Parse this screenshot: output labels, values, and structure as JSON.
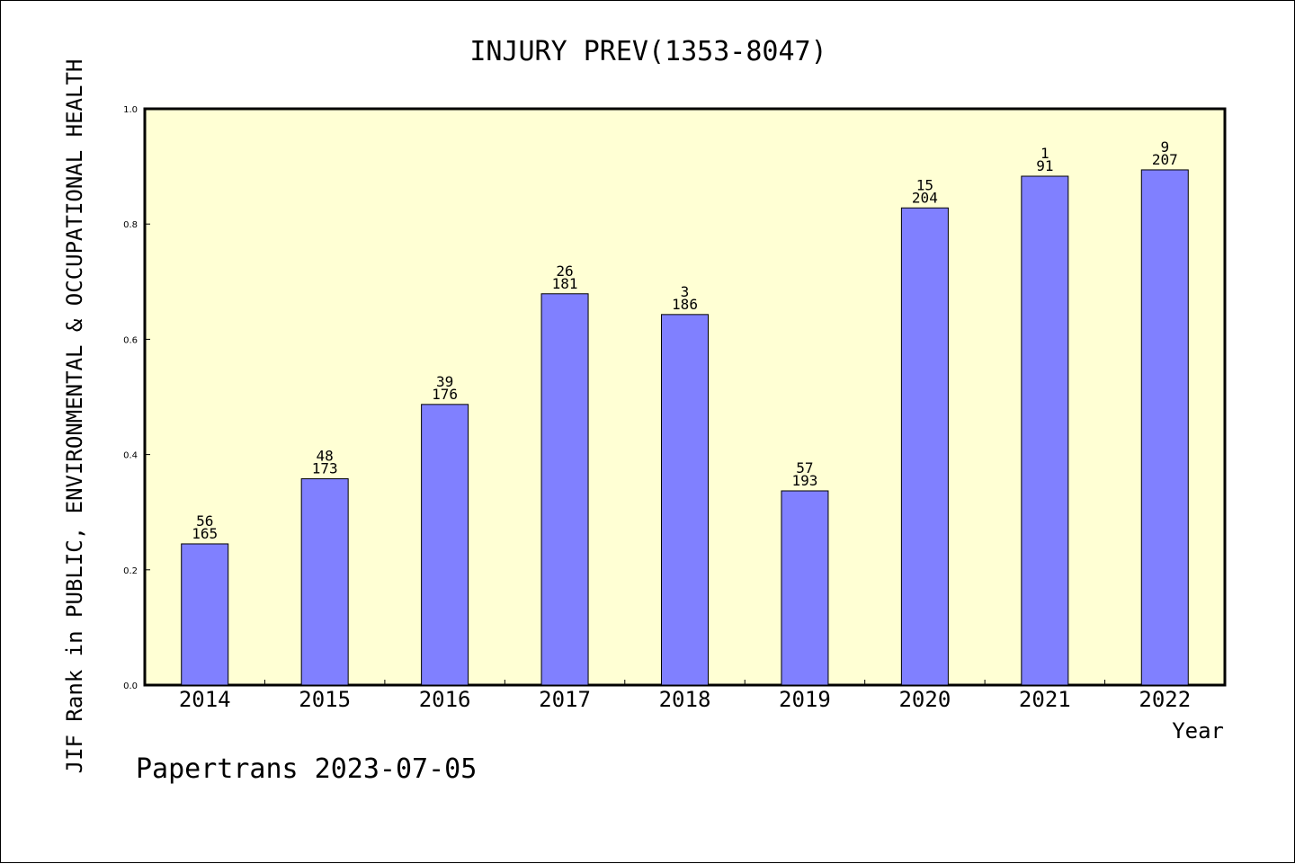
{
  "chart_data": {
    "type": "bar",
    "title": "INJURY PREV(1353-8047)",
    "xlabel": "Year",
    "ylabel": "JIF Rank in PUBLIC, ENVIRONMENTAL & OCCUPATIONAL HEALTH",
    "ylim": [
      0.0,
      1.0
    ],
    "yticks": [
      "0.0",
      "0.2",
      "0.4",
      "0.6",
      "0.8",
      "1.0"
    ],
    "categories": [
      "2014",
      "2015",
      "2016",
      "2017",
      "2018",
      "2019",
      "2020",
      "2021",
      "2022"
    ],
    "values": [
      0.245,
      0.358,
      0.487,
      0.679,
      0.643,
      0.337,
      0.828,
      0.883,
      0.894
    ],
    "rank": [
      "56",
      "48",
      "39",
      "26",
      "3",
      "57",
      "15",
      "1",
      "9"
    ],
    "total": [
      "165",
      "173",
      "176",
      "181",
      "186",
      "193",
      "204",
      "91",
      "207"
    ],
    "grid": false,
    "legend": "none",
    "colors": {
      "plot_background": "#ffffd4",
      "bar_fill": "#8080ff",
      "bar_stroke": "#000000"
    }
  },
  "footer": "Papertrans 2023-07-05"
}
